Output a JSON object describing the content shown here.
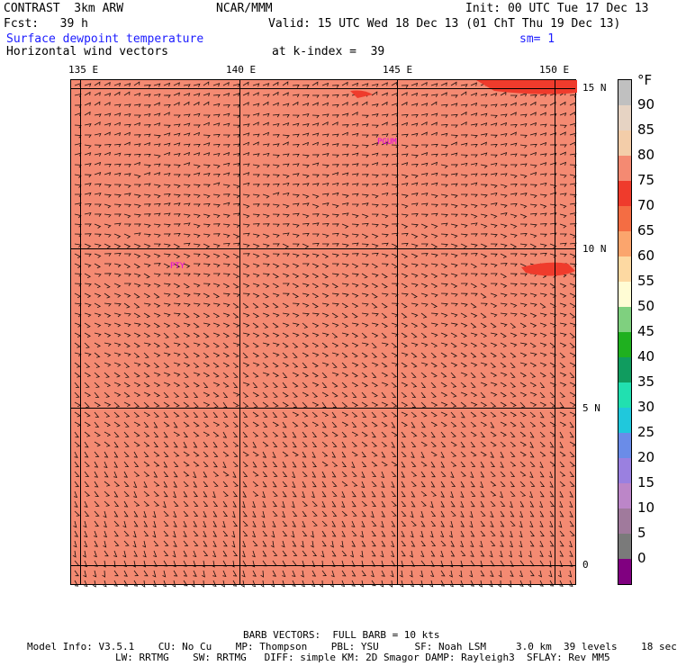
{
  "header": {
    "model": "CONTRAST  3km ARW",
    "org": "NCAR/MMM",
    "init": "Init: 00 UTC Tue 17 Dec 13",
    "fcst": "Fcst:   39 h",
    "valid": "Valid: 15 UTC Wed 18 Dec 13 (01 ChT Thu 19 Dec 13)",
    "field1": "Surface dewpoint temperature",
    "smooth": "sm= 1",
    "field2": "Horizontal wind vectors",
    "kindex": "at k-index =  39"
  },
  "map": {
    "lon_labels": [
      "135 E",
      "140 E",
      "145 E",
      "150 E"
    ],
    "lat_labels": [
      "15 N",
      "10 N",
      "5 N",
      "0"
    ],
    "stations": [
      "PGUM",
      "PTY"
    ],
    "fill_color": "#f48a72"
  },
  "legend": {
    "unit": "°F",
    "labels": [
      "90",
      "85",
      "80",
      "75",
      "70",
      "65",
      "60",
      "55",
      "50",
      "45",
      "40",
      "35",
      "30",
      "25",
      "20",
      "15",
      "10",
      "5",
      "0"
    ],
    "colors": [
      "#c0c0c0",
      "#e6d3c3",
      "#f3cda9",
      "#f48a72",
      "#ef3b2c",
      "#f46d43",
      "#fba56d",
      "#fdd9a2",
      "#fffcd4",
      "#7fd07f",
      "#1fb01f",
      "#109c5f",
      "#21e0b0",
      "#20c8dc",
      "#6a8ce8",
      "#9a80e0",
      "#bc86c8",
      "#a07a9c",
      "#7a7a7a",
      "#800080"
    ]
  },
  "footer": {
    "barb": "BARB VECTORS:  FULL BARB = 10 kts",
    "line1": "Model Info: V3.5.1    CU: No Cu    MP: Thompson    PBL: YSU      SF: Noah LSM     3.0 km  39 levels    18 sec",
    "line2": "LW: RRTMG    SW: RRTMG   DIFF: simple KM: 2D Smagor DAMP: Rayleigh3  SFLAY: Rev MM5"
  }
}
